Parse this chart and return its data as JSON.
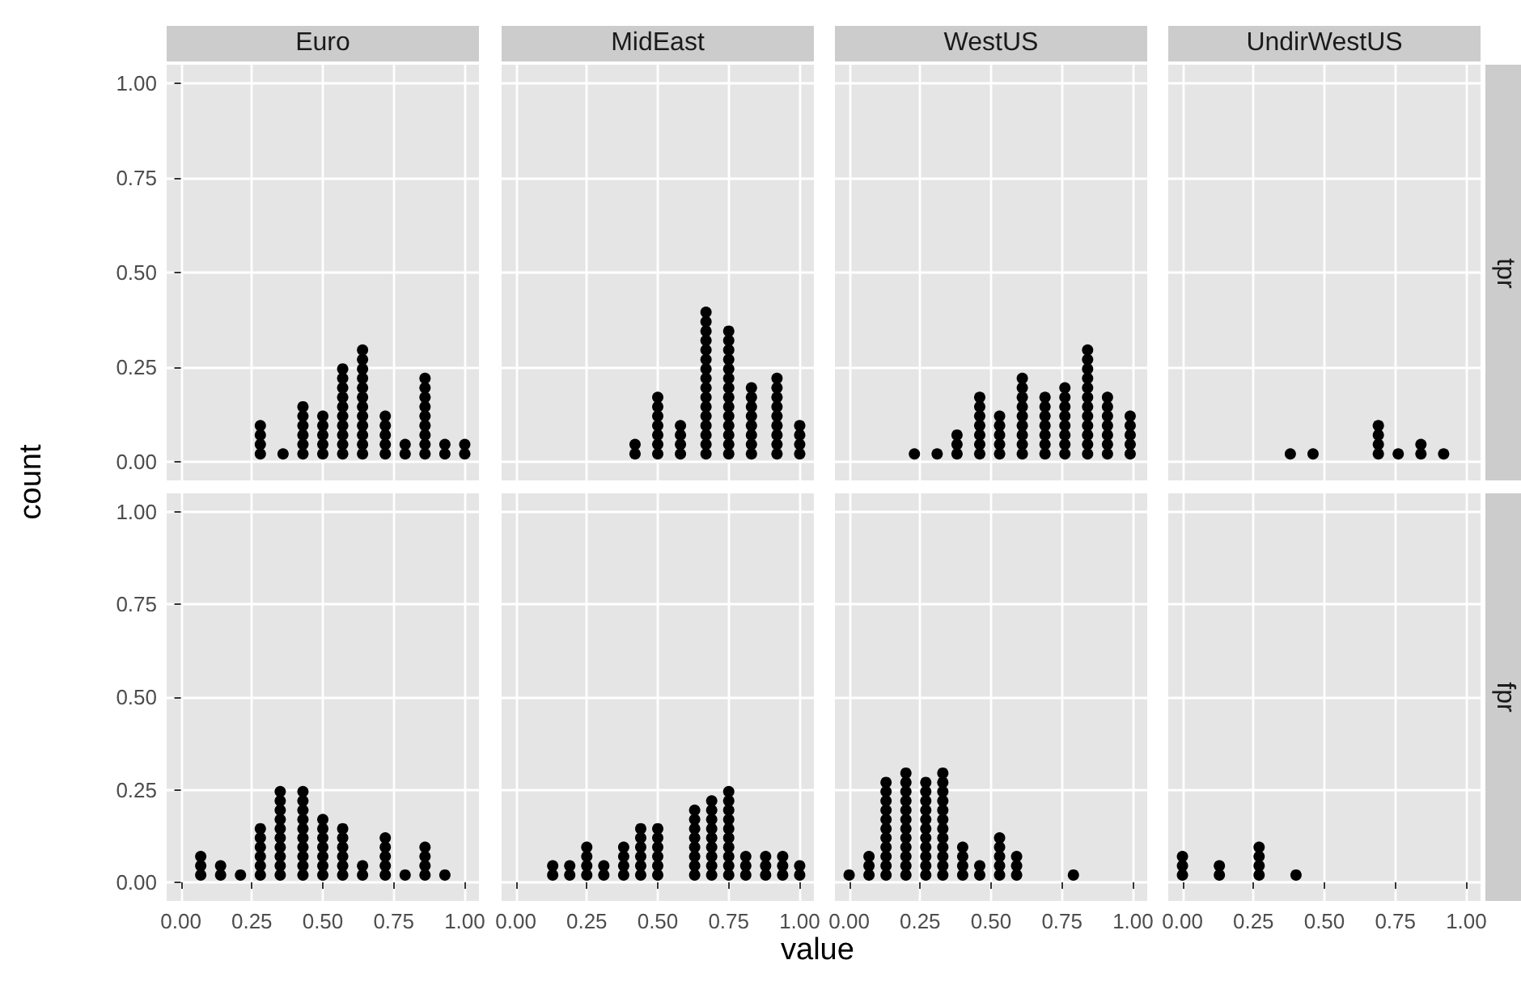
{
  "chart_data": [
    {
      "type": "scatter",
      "title": "Euro",
      "ylabel": "count",
      "xlim": [
        -0.05,
        1.05
      ],
      "ylim": [
        -0.05,
        1.05
      ],
      "xticks": [
        0,
        0.25,
        0.5,
        0.75,
        1
      ],
      "yticks": [
        {
          "value": 0,
          "label": "0.00"
        },
        {
          "value": 0.25,
          "label": "0.25"
        },
        {
          "value": 0.5,
          "label": "0.50"
        },
        {
          "value": 0.75,
          "label": "0.75"
        },
        {
          "value": 1,
          "label": "1.00"
        }
      ],
      "grid": true,
      "marker": "circle",
      "tick_labels": "y",
      "series": [
        {
          "color": "#000000",
          "x": [
            0.28,
            0.28,
            0.28,
            0.28,
            0.36,
            0.43,
            0.43,
            0.43,
            0.43,
            0.43,
            0.43,
            0.5,
            0.5,
            0.5,
            0.5,
            0.5,
            0.57,
            0.57,
            0.57,
            0.57,
            0.57,
            0.57,
            0.57,
            0.57,
            0.57,
            0.57,
            0.64,
            0.64,
            0.64,
            0.64,
            0.64,
            0.64,
            0.64,
            0.64,
            0.64,
            0.64,
            0.64,
            0.64,
            0.72,
            0.72,
            0.72,
            0.72,
            0.72,
            0.79,
            0.79,
            0.86,
            0.86,
            0.86,
            0.86,
            0.86,
            0.86,
            0.86,
            0.86,
            0.86,
            0.93,
            0.93,
            1,
            1
          ],
          "values": [
            0.02,
            0.045,
            0.07,
            0.095,
            0.02,
            0.02,
            0.045,
            0.07,
            0.095,
            0.12,
            0.145,
            0.02,
            0.045,
            0.07,
            0.095,
            0.12,
            0.02,
            0.045,
            0.07,
            0.095,
            0.12,
            0.145,
            0.17,
            0.195,
            0.22,
            0.245,
            0.02,
            0.045,
            0.07,
            0.095,
            0.12,
            0.145,
            0.17,
            0.195,
            0.22,
            0.245,
            0.27,
            0.295,
            0.02,
            0.045,
            0.07,
            0.095,
            0.12,
            0.02,
            0.045,
            0.02,
            0.045,
            0.07,
            0.095,
            0.12,
            0.145,
            0.17,
            0.195,
            0.22,
            0.02,
            0.045,
            0.02,
            0.045
          ]
        }
      ]
    },
    {
      "type": "scatter",
      "title": "MidEast",
      "xlim": [
        -0.05,
        1.05
      ],
      "ylim": [
        -0.05,
        1.05
      ],
      "xticks": [
        0,
        0.25,
        0.5,
        0.75,
        1
      ],
      "yticks": [
        0,
        0.25,
        0.5,
        0.75,
        1
      ],
      "grid": true,
      "marker": "circle",
      "tick_labels": false,
      "series": [
        {
          "color": "#000000",
          "x": [
            0.42,
            0.42,
            0.5,
            0.5,
            0.5,
            0.5,
            0.5,
            0.5,
            0.5,
            0.58,
            0.58,
            0.58,
            0.58,
            0.67,
            0.67,
            0.67,
            0.67,
            0.67,
            0.67,
            0.67,
            0.67,
            0.67,
            0.67,
            0.67,
            0.67,
            0.67,
            0.67,
            0.67,
            0.67,
            0.75,
            0.75,
            0.75,
            0.75,
            0.75,
            0.75,
            0.75,
            0.75,
            0.75,
            0.75,
            0.75,
            0.75,
            0.75,
            0.75,
            0.83,
            0.83,
            0.83,
            0.83,
            0.83,
            0.83,
            0.83,
            0.83,
            0.92,
            0.92,
            0.92,
            0.92,
            0.92,
            0.92,
            0.92,
            0.92,
            0.92,
            1,
            1,
            1,
            1
          ],
          "values": [
            0.02,
            0.045,
            0.02,
            0.045,
            0.07,
            0.095,
            0.12,
            0.145,
            0.17,
            0.02,
            0.045,
            0.07,
            0.095,
            0.02,
            0.045,
            0.07,
            0.095,
            0.12,
            0.145,
            0.17,
            0.195,
            0.22,
            0.245,
            0.27,
            0.295,
            0.32,
            0.345,
            0.37,
            0.395,
            0.02,
            0.045,
            0.07,
            0.095,
            0.12,
            0.145,
            0.17,
            0.195,
            0.22,
            0.245,
            0.27,
            0.295,
            0.32,
            0.345,
            0.02,
            0.045,
            0.07,
            0.095,
            0.12,
            0.145,
            0.17,
            0.195,
            0.02,
            0.045,
            0.07,
            0.095,
            0.12,
            0.145,
            0.17,
            0.195,
            0.22,
            0.02,
            0.045,
            0.07,
            0.095
          ]
        }
      ]
    },
    {
      "type": "scatter",
      "title": "WestUS",
      "xlim": [
        -0.05,
        1.05
      ],
      "ylim": [
        -0.05,
        1.05
      ],
      "xticks": [
        0,
        0.25,
        0.5,
        0.75,
        1
      ],
      "yticks": [
        0,
        0.25,
        0.5,
        0.75,
        1
      ],
      "grid": true,
      "marker": "circle",
      "tick_labels": false,
      "series": [
        {
          "color": "#000000",
          "x": [
            0.23,
            0.31,
            0.38,
            0.38,
            0.38,
            0.46,
            0.46,
            0.46,
            0.46,
            0.46,
            0.46,
            0.46,
            0.53,
            0.53,
            0.53,
            0.53,
            0.53,
            0.61,
            0.61,
            0.61,
            0.61,
            0.61,
            0.61,
            0.61,
            0.61,
            0.61,
            0.69,
            0.69,
            0.69,
            0.69,
            0.69,
            0.69,
            0.69,
            0.76,
            0.76,
            0.76,
            0.76,
            0.76,
            0.76,
            0.76,
            0.76,
            0.84,
            0.84,
            0.84,
            0.84,
            0.84,
            0.84,
            0.84,
            0.84,
            0.84,
            0.84,
            0.84,
            0.84,
            0.91,
            0.91,
            0.91,
            0.91,
            0.91,
            0.91,
            0.91,
            0.99,
            0.99,
            0.99,
            0.99,
            0.99
          ],
          "values": [
            0.02,
            0.02,
            0.02,
            0.045,
            0.07,
            0.02,
            0.045,
            0.07,
            0.095,
            0.12,
            0.145,
            0.17,
            0.02,
            0.045,
            0.07,
            0.095,
            0.12,
            0.02,
            0.045,
            0.07,
            0.095,
            0.12,
            0.145,
            0.17,
            0.195,
            0.22,
            0.02,
            0.045,
            0.07,
            0.095,
            0.12,
            0.145,
            0.17,
            0.02,
            0.045,
            0.07,
            0.095,
            0.12,
            0.145,
            0.17,
            0.195,
            0.02,
            0.045,
            0.07,
            0.095,
            0.12,
            0.145,
            0.17,
            0.195,
            0.22,
            0.245,
            0.27,
            0.295,
            0.02,
            0.045,
            0.07,
            0.095,
            0.12,
            0.145,
            0.17,
            0.02,
            0.045,
            0.07,
            0.095,
            0.12
          ]
        }
      ]
    },
    {
      "type": "scatter",
      "title": "UndirWestUS",
      "y2label": "tpr",
      "xlim": [
        -0.05,
        1.05
      ],
      "ylim": [
        -0.05,
        1.05
      ],
      "xticks": [
        0,
        0.25,
        0.5,
        0.75,
        1
      ],
      "yticks": [
        0,
        0.25,
        0.5,
        0.75,
        1
      ],
      "grid": true,
      "marker": "circle",
      "tick_labels": false,
      "series": [
        {
          "color": "#000000",
          "x": [
            0.38,
            0.46,
            0.69,
            0.69,
            0.69,
            0.69,
            0.76,
            0.84,
            0.84,
            0.92
          ],
          "values": [
            0.02,
            0.02,
            0.02,
            0.045,
            0.07,
            0.095,
            0.02,
            0.02,
            0.045,
            0.02
          ]
        }
      ]
    },
    {
      "type": "scatter",
      "xlim": [
        -0.05,
        1.05
      ],
      "ylim": [
        -0.05,
        1.05
      ],
      "xticks": [
        {
          "value": 0,
          "label": "0.00"
        },
        {
          "value": 0.25,
          "label": "0.25"
        },
        {
          "value": 0.5,
          "label": "0.50"
        },
        {
          "value": 0.75,
          "label": "0.75"
        },
        {
          "value": 1,
          "label": "1.00"
        }
      ],
      "yticks": [
        {
          "value": 0,
          "label": "0.00"
        },
        {
          "value": 0.25,
          "label": "0.25"
        },
        {
          "value": 0.5,
          "label": "0.50"
        },
        {
          "value": 0.75,
          "label": "0.75"
        },
        {
          "value": 1,
          "label": "1.00"
        }
      ],
      "grid": true,
      "marker": "circle",
      "series": [
        {
          "color": "#000000",
          "x": [
            0.07,
            0.07,
            0.07,
            0.14,
            0.14,
            0.21,
            0.28,
            0.28,
            0.28,
            0.28,
            0.28,
            0.28,
            0.35,
            0.35,
            0.35,
            0.35,
            0.35,
            0.35,
            0.35,
            0.35,
            0.35,
            0.35,
            0.43,
            0.43,
            0.43,
            0.43,
            0.43,
            0.43,
            0.43,
            0.43,
            0.43,
            0.43,
            0.5,
            0.5,
            0.5,
            0.5,
            0.5,
            0.5,
            0.5,
            0.57,
            0.57,
            0.57,
            0.57,
            0.57,
            0.57,
            0.64,
            0.64,
            0.72,
            0.72,
            0.72,
            0.72,
            0.72,
            0.79,
            0.86,
            0.86,
            0.86,
            0.86,
            0.93
          ],
          "values": [
            0.02,
            0.045,
            0.07,
            0.02,
            0.045,
            0.02,
            0.02,
            0.045,
            0.07,
            0.095,
            0.12,
            0.145,
            0.02,
            0.045,
            0.07,
            0.095,
            0.12,
            0.145,
            0.17,
            0.195,
            0.22,
            0.245,
            0.02,
            0.045,
            0.07,
            0.095,
            0.12,
            0.145,
            0.17,
            0.195,
            0.22,
            0.245,
            0.02,
            0.045,
            0.07,
            0.095,
            0.12,
            0.145,
            0.17,
            0.02,
            0.045,
            0.07,
            0.095,
            0.12,
            0.145,
            0.02,
            0.045,
            0.02,
            0.045,
            0.07,
            0.095,
            0.12,
            0.02,
            0.02,
            0.045,
            0.07,
            0.095,
            0.02
          ]
        }
      ]
    },
    {
      "type": "scatter",
      "xlabel": "value",
      "xlim": [
        -0.05,
        1.05
      ],
      "ylim": [
        -0.05,
        1.05
      ],
      "xticks": [
        {
          "value": 0,
          "label": "0.00"
        },
        {
          "value": 0.25,
          "label": "0.25"
        },
        {
          "value": 0.5,
          "label": "0.50"
        },
        {
          "value": 0.75,
          "label": "0.75"
        },
        {
          "value": 1,
          "label": "1.00"
        }
      ],
      "yticks": [
        0,
        0.25,
        0.5,
        0.75,
        1
      ],
      "grid": true,
      "marker": "circle",
      "tick_labels": "x",
      "series": [
        {
          "color": "#000000",
          "x": [
            0.13,
            0.13,
            0.19,
            0.19,
            0.25,
            0.25,
            0.25,
            0.25,
            0.31,
            0.31,
            0.38,
            0.38,
            0.38,
            0.38,
            0.44,
            0.44,
            0.44,
            0.44,
            0.44,
            0.44,
            0.5,
            0.5,
            0.5,
            0.5,
            0.5,
            0.5,
            0.63,
            0.63,
            0.63,
            0.63,
            0.63,
            0.63,
            0.63,
            0.63,
            0.69,
            0.69,
            0.69,
            0.69,
            0.69,
            0.69,
            0.69,
            0.69,
            0.69,
            0.75,
            0.75,
            0.75,
            0.75,
            0.75,
            0.75,
            0.75,
            0.75,
            0.75,
            0.75,
            0.81,
            0.81,
            0.81,
            0.88,
            0.88,
            0.88,
            0.94,
            0.94,
            0.94,
            1,
            1
          ],
          "values": [
            0.02,
            0.045,
            0.02,
            0.045,
            0.02,
            0.045,
            0.07,
            0.095,
            0.02,
            0.045,
            0.02,
            0.045,
            0.07,
            0.095,
            0.02,
            0.045,
            0.07,
            0.095,
            0.12,
            0.145,
            0.02,
            0.045,
            0.07,
            0.095,
            0.12,
            0.145,
            0.02,
            0.045,
            0.07,
            0.095,
            0.12,
            0.145,
            0.17,
            0.195,
            0.02,
            0.045,
            0.07,
            0.095,
            0.12,
            0.145,
            0.17,
            0.195,
            0.22,
            0.02,
            0.045,
            0.07,
            0.095,
            0.12,
            0.145,
            0.17,
            0.195,
            0.22,
            0.245,
            0.02,
            0.045,
            0.07,
            0.02,
            0.045,
            0.07,
            0.02,
            0.045,
            0.07,
            0.02,
            0.045
          ]
        }
      ]
    },
    {
      "type": "scatter",
      "xlim": [
        -0.05,
        1.05
      ],
      "ylim": [
        -0.05,
        1.05
      ],
      "xticks": [
        {
          "value": 0,
          "label": "0.00"
        },
        {
          "value": 0.25,
          "label": "0.25"
        },
        {
          "value": 0.5,
          "label": "0.50"
        },
        {
          "value": 0.75,
          "label": "0.75"
        },
        {
          "value": 1,
          "label": "1.00"
        }
      ],
      "yticks": [
        0,
        0.25,
        0.5,
        0.75,
        1
      ],
      "grid": true,
      "marker": "circle",
      "tick_labels": "x",
      "series": [
        {
          "color": "#000000",
          "x": [
            0,
            0.07,
            0.07,
            0.07,
            0.13,
            0.13,
            0.13,
            0.13,
            0.13,
            0.13,
            0.13,
            0.13,
            0.13,
            0.13,
            0.13,
            0.2,
            0.2,
            0.2,
            0.2,
            0.2,
            0.2,
            0.2,
            0.2,
            0.2,
            0.2,
            0.2,
            0.2,
            0.27,
            0.27,
            0.27,
            0.27,
            0.27,
            0.27,
            0.27,
            0.27,
            0.27,
            0.27,
            0.27,
            0.33,
            0.33,
            0.33,
            0.33,
            0.33,
            0.33,
            0.33,
            0.33,
            0.33,
            0.33,
            0.33,
            0.33,
            0.4,
            0.4,
            0.4,
            0.4,
            0.46,
            0.46,
            0.53,
            0.53,
            0.53,
            0.53,
            0.53,
            0.59,
            0.59,
            0.59,
            0.79
          ],
          "values": [
            0.02,
            0.02,
            0.045,
            0.07,
            0.02,
            0.045,
            0.07,
            0.095,
            0.12,
            0.145,
            0.17,
            0.195,
            0.22,
            0.245,
            0.27,
            0.02,
            0.045,
            0.07,
            0.095,
            0.12,
            0.145,
            0.17,
            0.195,
            0.22,
            0.245,
            0.27,
            0.295,
            0.02,
            0.045,
            0.07,
            0.095,
            0.12,
            0.145,
            0.17,
            0.195,
            0.22,
            0.245,
            0.27,
            0.02,
            0.045,
            0.07,
            0.095,
            0.12,
            0.145,
            0.17,
            0.195,
            0.22,
            0.245,
            0.27,
            0.295,
            0.02,
            0.045,
            0.07,
            0.095,
            0.02,
            0.045,
            0.02,
            0.045,
            0.07,
            0.095,
            0.12,
            0.02,
            0.045,
            0.07,
            0.02
          ]
        }
      ]
    },
    {
      "type": "scatter",
      "y2label": "fpr",
      "xlim": [
        -0.05,
        1.05
      ],
      "ylim": [
        -0.05,
        1.05
      ],
      "xticks": [
        {
          "value": 0,
          "label": "0.00"
        },
        {
          "value": 0.25,
          "label": "0.25"
        },
        {
          "value": 0.5,
          "label": "0.50"
        },
        {
          "value": 0.75,
          "label": "0.75"
        },
        {
          "value": 1,
          "label": "1.00"
        }
      ],
      "yticks": [
        0,
        0.25,
        0.5,
        0.75,
        1
      ],
      "grid": true,
      "marker": "circle",
      "tick_labels": "x",
      "series": [
        {
          "color": "#000000",
          "x": [
            0,
            0,
            0,
            0.13,
            0.13,
            0.27,
            0.27,
            0.27,
            0.27,
            0.4
          ],
          "values": [
            0.02,
            0.045,
            0.07,
            0.02,
            0.045,
            0.02,
            0.045,
            0.07,
            0.095,
            0.02
          ]
        }
      ]
    }
  ]
}
